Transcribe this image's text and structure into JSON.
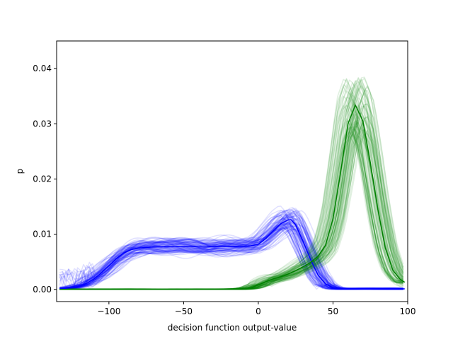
{
  "chart_data": {
    "type": "line",
    "title": "",
    "xlabel": "decision function output-value",
    "ylabel": "p",
    "xlim": [
      -135,
      100
    ],
    "ylim": [
      -0.0022,
      0.045
    ],
    "xticks": [
      -100,
      -50,
      0,
      50,
      100
    ],
    "yticks": [
      0.0,
      0.01,
      0.02,
      0.03,
      0.04
    ],
    "xtick_labels": [
      "−100",
      "−50",
      "0",
      "50",
      "100"
    ],
    "ytick_labels": [
      "0.00",
      "0.01",
      "0.02",
      "0.03",
      "0.04"
    ],
    "grid": false,
    "legend": "none",
    "colors": {
      "blue": "#0000ff",
      "green": "#008000"
    },
    "faint_bundles": [
      {
        "color": "#0000ff",
        "count": 90,
        "opacity": 0.12,
        "description": "bootstrap density estimates (blue class)"
      },
      {
        "color": "#008000",
        "count": 90,
        "opacity": 0.12,
        "description": "bootstrap density estimates (green class)"
      }
    ],
    "series": [
      {
        "color": "#0000ff",
        "x": [
          -133,
          -125,
          -120,
          -115,
          -110,
          -105,
          -100,
          -95,
          -90,
          -85,
          -80,
          -75,
          -70,
          -65,
          -60,
          -55,
          -50,
          -45,
          -40,
          -35,
          -30,
          -25,
          -20,
          -15,
          -10,
          -5,
          0,
          5,
          10,
          15,
          20,
          22,
          25,
          30,
          35,
          40,
          45,
          50,
          55,
          60,
          70,
          80,
          90,
          98
        ],
        "y": [
          0.0001,
          0.0003,
          0.0006,
          0.0011,
          0.0019,
          0.003,
          0.0043,
          0.0056,
          0.0066,
          0.0072,
          0.0075,
          0.0076,
          0.0077,
          0.0077,
          0.0078,
          0.0078,
          0.0078,
          0.0078,
          0.0077,
          0.0077,
          0.0078,
          0.0078,
          0.0078,
          0.0078,
          0.0078,
          0.0079,
          0.0082,
          0.0092,
          0.0106,
          0.0119,
          0.0126,
          0.0126,
          0.0117,
          0.0087,
          0.0054,
          0.0026,
          0.001,
          0.0003,
          0.0001,
          0.0001,
          0.0001,
          0.0001,
          0.0001,
          0.0001
        ]
      },
      {
        "color": "#008000",
        "x": [
          -133,
          -100,
          -50,
          -20,
          -10,
          -5,
          0,
          5,
          10,
          15,
          20,
          25,
          30,
          35,
          40,
          45,
          50,
          55,
          60,
          65,
          70,
          75,
          80,
          85,
          90,
          95,
          98
        ],
        "y": [
          0.0,
          0.0,
          0.0,
          0.0,
          0.0001,
          0.0003,
          0.0008,
          0.0014,
          0.0019,
          0.0023,
          0.0028,
          0.0034,
          0.0041,
          0.0049,
          0.006,
          0.008,
          0.0128,
          0.021,
          0.03,
          0.0334,
          0.0305,
          0.023,
          0.0145,
          0.0075,
          0.0035,
          0.0018,
          0.0013
        ]
      }
    ]
  }
}
